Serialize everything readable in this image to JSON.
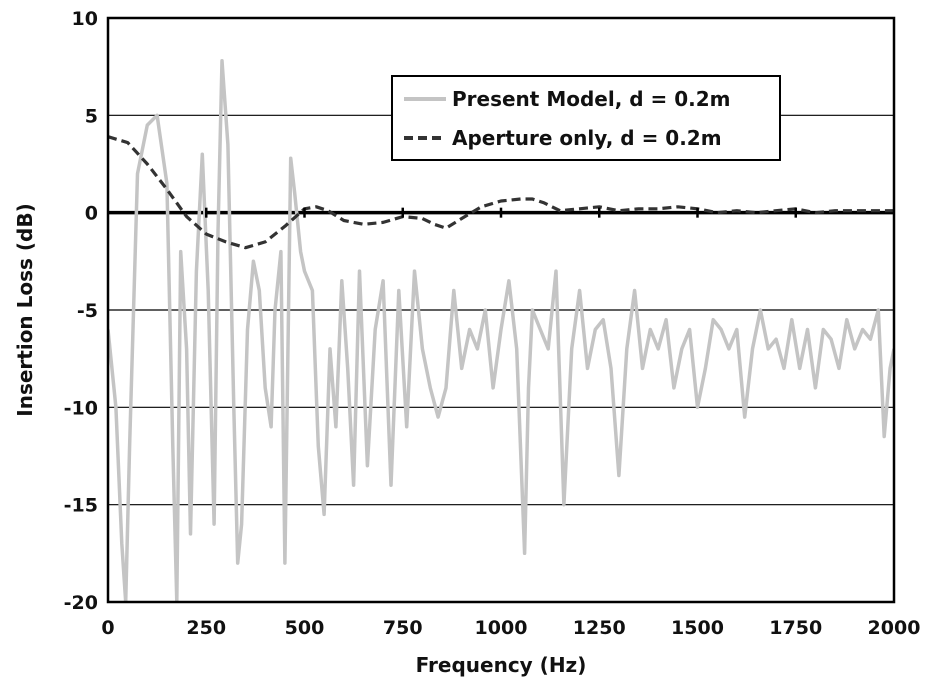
{
  "chart_data": {
    "type": "line",
    "title": "",
    "xlabel": "Frequency (Hz)",
    "ylabel": "Insertion Loss (dB)",
    "xlim": [
      0,
      2000
    ],
    "ylim": [
      -20,
      10
    ],
    "x_ticks": [
      0,
      250,
      500,
      750,
      1000,
      1250,
      1500,
      1750,
      2000
    ],
    "y_ticks": [
      10,
      5,
      0,
      -5,
      -10,
      -15,
      -20
    ],
    "x_tick_labels": [
      "0",
      "250",
      "500",
      "750",
      "1000",
      "1250",
      "1500",
      "1750",
      "2000"
    ],
    "y_tick_labels": [
      "10",
      "5",
      "0",
      "-5",
      "-10",
      "-15",
      "-20"
    ],
    "grid": "horizontal",
    "legend_position": "top-right",
    "series": [
      {
        "name": "Present Model, d = 0.2m",
        "color": "#c4c4c4",
        "style": "solid",
        "x": [
          0,
          20,
          35,
          45,
          55,
          75,
          100,
          125,
          150,
          165,
          175,
          185,
          200,
          210,
          225,
          240,
          255,
          270,
          280,
          290,
          305,
          320,
          330,
          340,
          355,
          370,
          385,
          400,
          415,
          425,
          440,
          450,
          465,
          475,
          490,
          500,
          520,
          535,
          550,
          565,
          580,
          595,
          610,
          625,
          640,
          660,
          680,
          700,
          720,
          740,
          760,
          780,
          800,
          820,
          840,
          860,
          880,
          900,
          920,
          940,
          960,
          980,
          1000,
          1020,
          1040,
          1060,
          1070,
          1080,
          1100,
          1120,
          1140,
          1160,
          1180,
          1200,
          1220,
          1240,
          1260,
          1280,
          1300,
          1320,
          1340,
          1360,
          1380,
          1400,
          1420,
          1440,
          1460,
          1480,
          1500,
          1520,
          1540,
          1560,
          1580,
          1600,
          1620,
          1640,
          1660,
          1680,
          1700,
          1720,
          1740,
          1760,
          1780,
          1800,
          1820,
          1840,
          1860,
          1880,
          1900,
          1920,
          1940,
          1960,
          1975,
          1990,
          2000
        ],
        "y": [
          -6,
          -10,
          -17,
          -20,
          -12,
          2,
          4.5,
          5,
          1.5,
          -12,
          -20,
          -2,
          -7,
          -16.5,
          -3,
          3,
          -4,
          -16,
          -1,
          7.8,
          3.5,
          -10,
          -18,
          -16,
          -6,
          -2.5,
          -4,
          -9,
          -11,
          -5,
          -2,
          -18,
          2.8,
          1,
          -2,
          -3,
          -4,
          -12,
          -15.5,
          -7,
          -11,
          -3.5,
          -8,
          -14,
          -3,
          -13,
          -6,
          -3.5,
          -14,
          -4,
          -11,
          -3,
          -7,
          -9,
          -10.5,
          -9,
          -4,
          -8,
          -6,
          -7,
          -5,
          -9,
          -6,
          -3.5,
          -7,
          -17.5,
          -9,
          -5,
          -6,
          -7,
          -3,
          -15,
          -7,
          -4,
          -8,
          -6,
          -5.5,
          -8,
          -13.5,
          -7,
          -4,
          -8,
          -6,
          -7,
          -5.5,
          -9,
          -7,
          -6,
          -10,
          -8,
          -5.5,
          -6,
          -7,
          -6,
          -10.5,
          -7,
          -5,
          -7,
          -6.5,
          -8,
          -5.5,
          -8,
          -6,
          -9,
          -6,
          -6.5,
          -8,
          -5.5,
          -7,
          -6,
          -6.5,
          -5,
          -11.5,
          -8,
          -7
        ]
      },
      {
        "name": "Aperture only, d = 0.2m",
        "color": "#333333",
        "style": "dashed",
        "x": [
          0,
          50,
          100,
          150,
          200,
          250,
          300,
          350,
          400,
          450,
          500,
          530,
          560,
          600,
          650,
          700,
          750,
          800,
          830,
          860,
          900,
          950,
          1000,
          1050,
          1080,
          1110,
          1150,
          1200,
          1250,
          1300,
          1350,
          1400,
          1450,
          1500,
          1550,
          1600,
          1650,
          1700,
          1750,
          1800,
          1850,
          1900,
          1950,
          2000
        ],
        "y": [
          3.9,
          3.6,
          2.5,
          1.2,
          -0.2,
          -1.1,
          -1.5,
          -1.8,
          -1.5,
          -0.7,
          0.2,
          0.3,
          0.1,
          -0.4,
          -0.6,
          -0.5,
          -0.2,
          -0.3,
          -0.6,
          -0.8,
          -0.3,
          0.3,
          0.6,
          0.7,
          0.7,
          0.5,
          0.1,
          0.2,
          0.3,
          0.1,
          0.2,
          0.2,
          0.3,
          0.2,
          0.0,
          0.1,
          0.0,
          0.1,
          0.2,
          0.0,
          0.1,
          0.1,
          0.1,
          0.1
        ]
      }
    ]
  }
}
